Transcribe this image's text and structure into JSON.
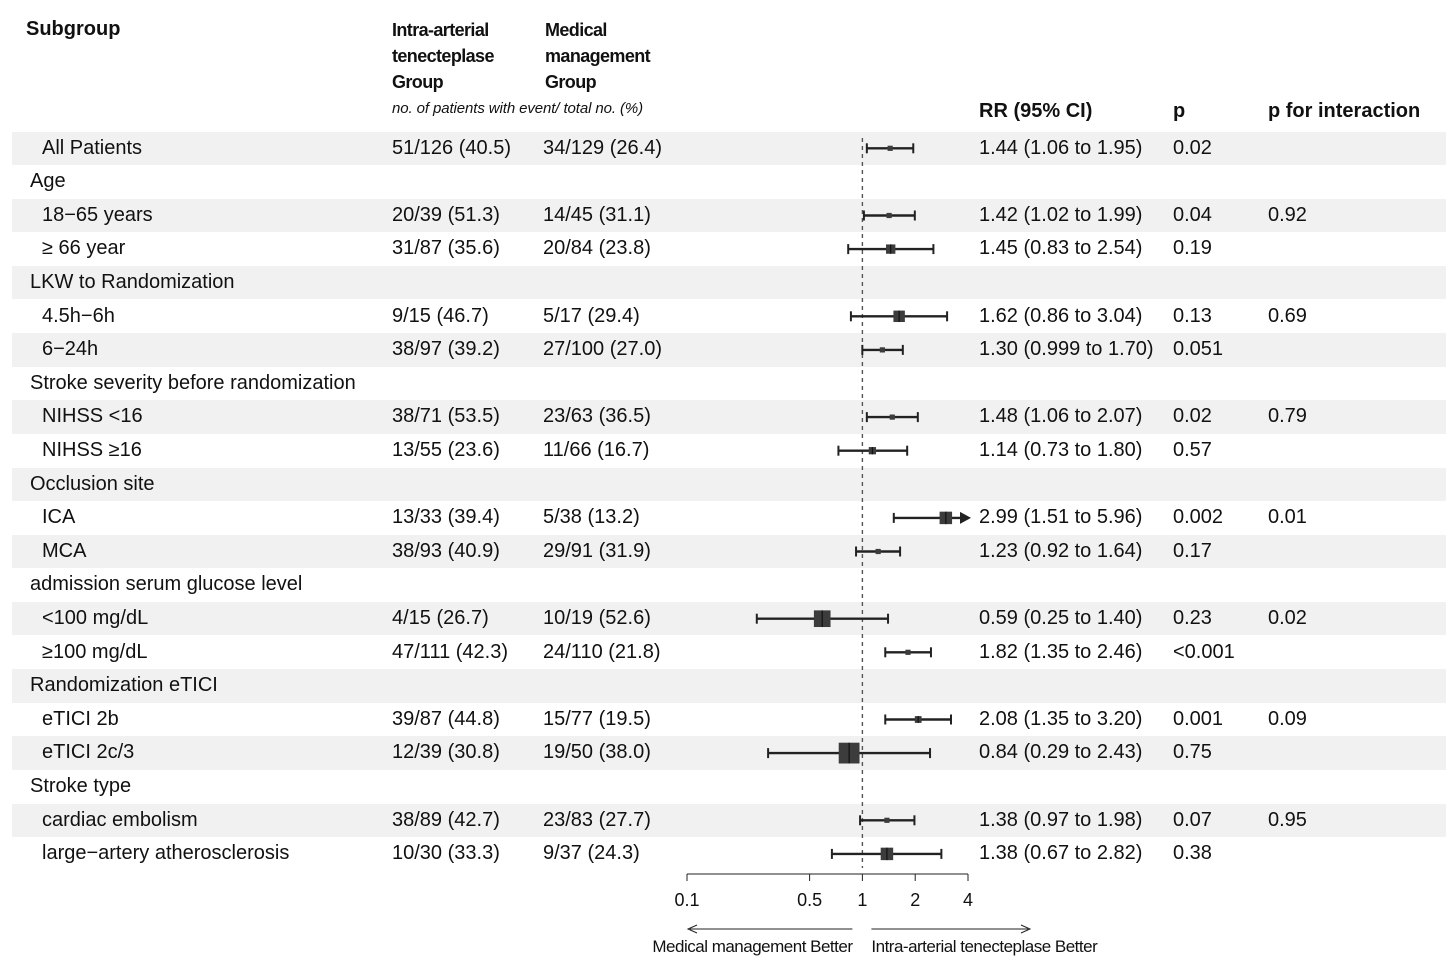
{
  "header": {
    "subgroup": "Subgroup",
    "group1": [
      "Intra-arterial",
      "tenecteplase",
      "Group"
    ],
    "group2": [
      "Medical",
      "management",
      "Group"
    ],
    "note": "no. of patients with event/ total no. (%)",
    "rr": "RR (95% CI)",
    "p": "p",
    "p_interaction": "p for interaction"
  },
  "rows": [
    {
      "label": "All Patients",
      "indent": true,
      "shaded": true,
      "g1": "51/126 (40.5)",
      "g2": "34/129 (26.4)",
      "rr_text": "1.44 (1.06 to 1.95)",
      "p": "0.02",
      "p_int": "",
      "rr": 1.44,
      "lo": 1.06,
      "hi": 1.95,
      "weight": 1.0
    },
    {
      "label": "Age",
      "indent": false,
      "shaded": false,
      "header": true
    },
    {
      "label": "18−65 years",
      "indent": true,
      "shaded": true,
      "g1": "20/39 (51.3)",
      "g2": "14/45 (31.1)",
      "rr_text": "1.42 (1.02 to 1.99)",
      "p": "0.04",
      "p_int": "0.92",
      "rr": 1.42,
      "lo": 1.02,
      "hi": 1.99,
      "weight": 1.0
    },
    {
      "label": "≥ 66 year",
      "indent": true,
      "shaded": false,
      "g1": "31/87 (35.6)",
      "g2": "20/84 (23.8)",
      "rr_text": "1.45 (0.83 to 2.54)",
      "p": "0.19",
      "p_int": "",
      "rr": 1.45,
      "lo": 0.83,
      "hi": 2.54,
      "weight": 1.8
    },
    {
      "label": "LKW to Randomization",
      "indent": false,
      "shaded": true,
      "header": true
    },
    {
      "label": "4.5h−6h",
      "indent": true,
      "shaded": false,
      "g1": "9/15 (46.7)",
      "g2": "5/17 (29.4)",
      "rr_text": "1.62 (0.86 to 3.04)",
      "p": "0.13",
      "p_int": "0.69",
      "rr": 1.62,
      "lo": 0.86,
      "hi": 3.04,
      "weight": 2.2
    },
    {
      "label": "6−24h",
      "indent": true,
      "shaded": true,
      "g1": "38/97 (39.2)",
      "g2": "27/100 (27.0)",
      "rr_text": "1.30 (0.999 to 1.70)",
      "p": "0.051",
      "p_int": "",
      "rr": 1.3,
      "lo": 0.999,
      "hi": 1.7,
      "weight": 1.0
    },
    {
      "label": "Stroke severity before randomization",
      "indent": false,
      "shaded": false,
      "header": true
    },
    {
      "label": "NIHSS <16",
      "indent": true,
      "shaded": true,
      "g1": "38/71 (53.5)",
      "g2": "23/63 (36.5)",
      "rr_text": "1.48 (1.06 to 2.07)",
      "p": "0.02",
      "p_int": "0.79",
      "rr": 1.48,
      "lo": 1.06,
      "hi": 2.07,
      "weight": 1.0
    },
    {
      "label": "NIHSS ≥16",
      "indent": true,
      "shaded": false,
      "g1": "13/55 (23.6)",
      "g2": "11/66 (16.7)",
      "rr_text": "1.14 (0.73 to 1.80)",
      "p": "0.57",
      "p_int": "",
      "rr": 1.14,
      "lo": 0.73,
      "hi": 1.8,
      "weight": 1.4
    },
    {
      "label": "Occlusion site",
      "indent": false,
      "shaded": true,
      "header": true
    },
    {
      "label": "ICA",
      "indent": true,
      "shaded": false,
      "g1": "13/33 (39.4)",
      "g2": "5/38 (13.2)",
      "rr_text": "2.99 (1.51 to 5.96)",
      "p": "0.002",
      "p_int": "0.01",
      "rr": 2.99,
      "lo": 1.51,
      "hi": 5.96,
      "weight": 2.4,
      "arrow": true
    },
    {
      "label": "MCA",
      "indent": true,
      "shaded": true,
      "g1": "38/93 (40.9)",
      "g2": "29/91 (31.9)",
      "rr_text": "1.23 (0.92 to 1.64)",
      "p": "0.17",
      "p_int": "",
      "rr": 1.23,
      "lo": 0.92,
      "hi": 1.64,
      "weight": 1.0
    },
    {
      "label": "admission serum glucose level",
      "indent": false,
      "shaded": false,
      "header": true
    },
    {
      "label": "<100 mg/dL",
      "indent": true,
      "shaded": true,
      "g1": "4/15 (26.7)",
      "g2": "10/19 (52.6)",
      "rr_text": "0.59 (0.25 to 1.40)",
      "p": "0.23",
      "p_int": "0.02",
      "rr": 0.59,
      "lo": 0.25,
      "hi": 1.4,
      "weight": 3.2
    },
    {
      "label": "≥100 mg/dL",
      "indent": true,
      "shaded": false,
      "g1": "47/111 (42.3)",
      "g2": "24/110 (21.8)",
      "rr_text": "1.82 (1.35 to 2.46)",
      "p": "<0.001",
      "p_int": "",
      "rr": 1.82,
      "lo": 1.35,
      "hi": 2.46,
      "weight": 1.0
    },
    {
      "label": "Randomization eTICI",
      "indent": false,
      "shaded": true,
      "header": true
    },
    {
      "label": "eTICI 2b",
      "indent": true,
      "shaded": false,
      "g1": "39/87 (44.8)",
      "g2": "15/77 (19.5)",
      "rr_text": "2.08 (1.35 to 3.20)",
      "p": "0.001",
      "p_int": "0.09",
      "rr": 2.08,
      "lo": 1.35,
      "hi": 3.2,
      "weight": 1.3
    },
    {
      "label": "eTICI 2c/3",
      "indent": true,
      "shaded": true,
      "g1": "12/39 (30.8)",
      "g2": "19/50 (38.0)",
      "rr_text": "0.84 (0.29 to 2.43)",
      "p": "0.75",
      "p_int": "",
      "rr": 0.84,
      "lo": 0.29,
      "hi": 2.43,
      "weight": 4.0
    },
    {
      "label": "Stroke type",
      "indent": false,
      "shaded": false,
      "header": true
    },
    {
      "label": "cardiac embolism",
      "indent": true,
      "shaded": true,
      "g1": "38/89 (42.7)",
      "g2": "23/83 (27.7)",
      "rr_text": "1.38 (0.97 to 1.98)",
      "p": "0.07",
      "p_int": "0.95",
      "rr": 1.38,
      "lo": 0.97,
      "hi": 1.98,
      "weight": 1.0
    },
    {
      "label": "large−artery atherosclerosis",
      "indent": true,
      "shaded": false,
      "g1": "10/30 (33.3)",
      "g2": "9/37 (24.3)",
      "rr_text": "1.38 (0.67 to 2.82)",
      "p": "0.38",
      "p_int": "",
      "rr": 1.38,
      "lo": 0.67,
      "hi": 2.82,
      "weight": 2.4
    }
  ],
  "chart_data": {
    "type": "forest",
    "xscale": "log",
    "xlim": [
      0.1,
      4
    ],
    "reference_line": 1,
    "ticks": [
      0.1,
      0.5,
      1,
      2,
      4
    ],
    "tick_labels": [
      "0.1",
      "0.5",
      "1",
      "2",
      "4"
    ],
    "left_label": "Medical management Better",
    "right_label": "Intra-arterial tenecteplase Better"
  },
  "colors": {
    "shade": "#f1f1f1",
    "marker": "#3c3c3c",
    "line": "#222222"
  }
}
